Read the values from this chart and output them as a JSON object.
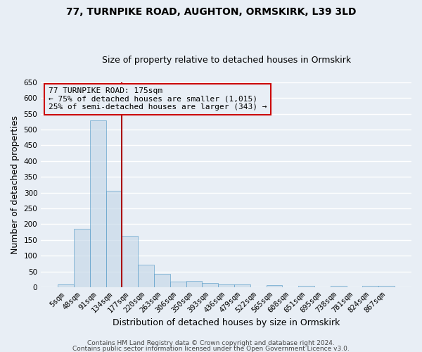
{
  "title1": "77, TURNPIKE ROAD, AUGHTON, ORMSKIRK, L39 3LD",
  "title2": "Size of property relative to detached houses in Ormskirk",
  "xlabel": "Distribution of detached houses by size in Ormskirk",
  "ylabel": "Number of detached properties",
  "categories": [
    "5sqm",
    "48sqm",
    "91sqm",
    "134sqm",
    "177sqm",
    "220sqm",
    "263sqm",
    "306sqm",
    "350sqm",
    "393sqm",
    "436sqm",
    "479sqm",
    "522sqm",
    "565sqm",
    "608sqm",
    "651sqm",
    "695sqm",
    "738sqm",
    "781sqm",
    "824sqm",
    "867sqm"
  ],
  "values": [
    10,
    185,
    530,
    305,
    163,
    72,
    42,
    17,
    19,
    13,
    10,
    8,
    0,
    7,
    0,
    5,
    0,
    5,
    0,
    5,
    5
  ],
  "bar_color": "#c5d8e8",
  "bar_edge_color": "#5b9ec9",
  "bar_alpha": 0.65,
  "bg_color": "#e8eef5",
  "grid_color": "white",
  "ylim": [
    0,
    650
  ],
  "yticks": [
    0,
    50,
    100,
    150,
    200,
    250,
    300,
    350,
    400,
    450,
    500,
    550,
    600,
    650
  ],
  "vline_x": 3.5,
  "vline_color": "#aa0000",
  "annotation_text": "77 TURNPIKE ROAD: 175sqm\n← 75% of detached houses are smaller (1,015)\n25% of semi-detached houses are larger (343) →",
  "annotation_box_color": "#cc0000",
  "footer1": "Contains HM Land Registry data © Crown copyright and database right 2024.",
  "footer2": "Contains public sector information licensed under the Open Government Licence v3.0.",
  "title1_fontsize": 10,
  "title2_fontsize": 9,
  "axis_label_fontsize": 9,
  "tick_fontsize": 7.5,
  "annotation_fontsize": 8,
  "footer_fontsize": 6.5
}
